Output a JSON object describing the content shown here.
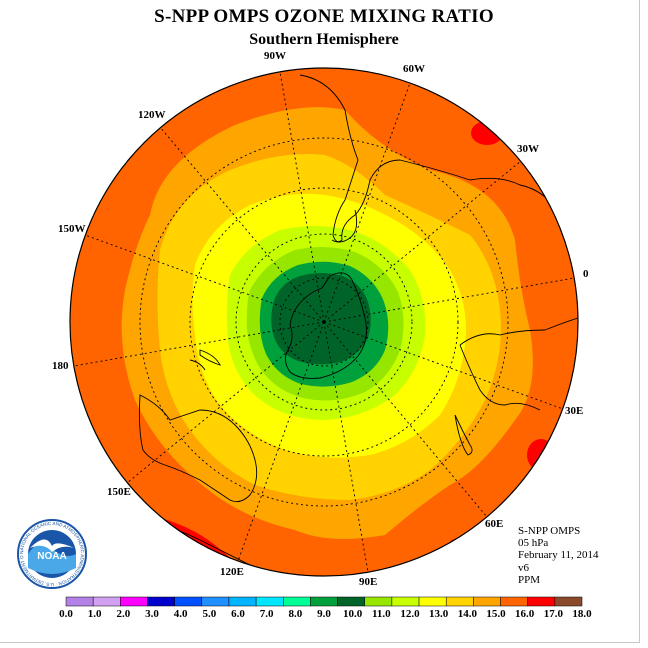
{
  "title": "S-NPP OMPS OZONE MIXING RATIO",
  "subtitle": "Southern Hemisphere",
  "longitude_labels": [
    "90W",
    "60W",
    "30W",
    "0",
    "30E",
    "60E",
    "90E",
    "120E",
    "150E",
    "180",
    "150W",
    "120W"
  ],
  "info": {
    "instrument": "S-NPP OMPS",
    "level": "05 hPa",
    "date": "February 11, 2014",
    "version": "v6",
    "units": "PPM"
  },
  "logo": {
    "text": "NOAA",
    "ring_text": "NATIONAL OCEANIC AND ATMOSPHERIC ADMINISTRATION · U.S. DEPARTMENT OF COMMERCE"
  },
  "colorbar": {
    "labels": [
      "0.0",
      "1.0",
      "2.0",
      "3.0",
      "4.0",
      "5.0",
      "6.0",
      "7.0",
      "8.0",
      "9.0",
      "10.0",
      "11.0",
      "12.0",
      "13.0",
      "14.0",
      "15.0",
      "16.0",
      "17.0",
      "18.0"
    ],
    "colors": [
      "#b482e6",
      "#d2a0f0",
      "#ff00ff",
      "#0000cd",
      "#0050ff",
      "#1e90ff",
      "#00b4ff",
      "#00e6ff",
      "#00ff96",
      "#00a03c",
      "#006428",
      "#96e600",
      "#c8ff00",
      "#ffff00",
      "#ffd200",
      "#ffa500",
      "#ff6400",
      "#ff0000",
      "#8b4a2a"
    ]
  },
  "colors": {
    "band_outer": "#ff6400",
    "band_15": "#ffa500",
    "band_14": "#ffd200",
    "band_13": "#ffff00",
    "band_12": "#c8ff00",
    "band_11": "#96e600",
    "band_10": "#00a03c",
    "band_9": "#006428",
    "band_17": "#ff0000"
  }
}
